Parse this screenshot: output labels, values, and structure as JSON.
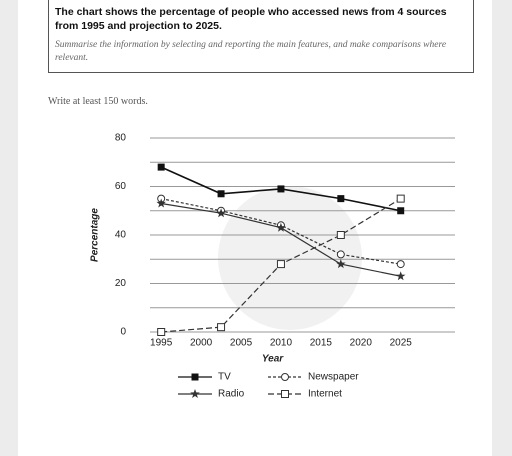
{
  "prompt": {
    "title": "The chart shows the percentage of people who accessed news from 4 sources from 1995 and projection to 2025.",
    "task": "Summarise the information by selecting and reporting the main features, and make comparisons where relevant.",
    "instruction": "Write at least 150 words."
  },
  "chart_data": {
    "type": "line",
    "x_label": "Year",
    "y_label": "Percentage",
    "x": [
      1995,
      2002.5,
      2010,
      2017.5,
      2025
    ],
    "xlim": [
      1993.6,
      2031.8
    ],
    "xticks": [
      1995,
      2000,
      2005,
      2010,
      2015,
      2020,
      2025
    ],
    "ylim": [
      0,
      80
    ],
    "yticks": [
      0,
      20,
      40,
      60,
      80
    ],
    "grid": true,
    "series": [
      {
        "name": "TV",
        "color": "#111111",
        "line_style": "solid",
        "marker": "square",
        "values": [
          68,
          57,
          59,
          55,
          50
        ]
      },
      {
        "name": "Newspaper",
        "color": "#333333",
        "line_style": "dotted",
        "marker": "circle",
        "values": [
          55,
          50,
          44,
          32,
          28
        ]
      },
      {
        "name": "Radio",
        "color": "#333333",
        "line_style": "solid",
        "marker": "star",
        "values": [
          53,
          49,
          43,
          28,
          23
        ]
      },
      {
        "name": "Internet",
        "color": "#333333",
        "line_style": "dashed",
        "marker": "open-square",
        "values": [
          0,
          2,
          28,
          40,
          55
        ]
      }
    ]
  }
}
